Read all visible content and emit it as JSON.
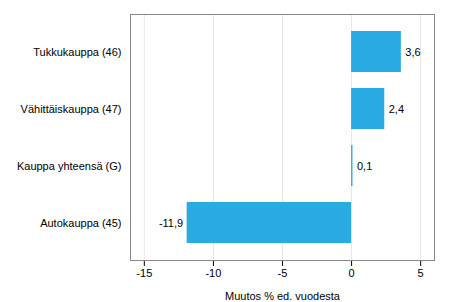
{
  "chart_data": {
    "type": "bar",
    "orientation": "horizontal",
    "categories": [
      "Autokauppa (45)",
      "Kauppa yhteensä (G)",
      "Vähittäiskauppa (47)",
      "Tukkukauppa (46)"
    ],
    "values": [
      -11.9,
      0.1,
      2.4,
      3.6
    ],
    "value_labels": [
      "-11,9",
      "0,1",
      "2,4",
      "3,6"
    ],
    "color": "#29abe2",
    "xlabel": "Muutos % ed. vuodesta",
    "xlim": [
      -16,
      6
    ],
    "xticks": [
      -15,
      -10,
      -5,
      0,
      5
    ],
    "grid": true
  }
}
